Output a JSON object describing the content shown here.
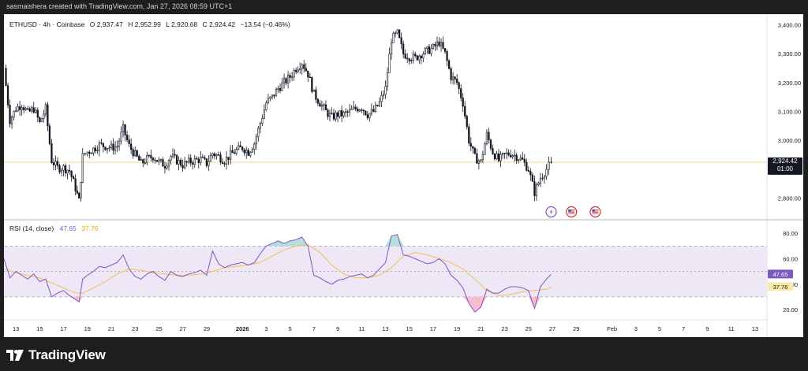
{
  "header": {
    "credit": "sasmaishera created with TradingView.com, Jan 27, 2026 08:59 UTC+1"
  },
  "footer": {
    "brand": "TradingView"
  },
  "colors": {
    "candle": "#131722",
    "price_line": "#f0d896",
    "rsi_line": "#7e57c2",
    "rsi_ma": "#f2c14e",
    "rsi_band": "#ede7f6",
    "overbought_fill": "#b2dfdb",
    "oversold_fill": "#f8bbd0",
    "price_tag_bg": "#131722",
    "rsi_tag_bg": "#7e57c2",
    "ma_tag_bg": "#fbe9a8"
  },
  "chart_data": [
    {
      "type": "candlestick",
      "symbol": "ETHUSD",
      "interval": "4h",
      "exchange": "Coinbase",
      "legend_title": "ETHUSD · 4h · Coinbase",
      "ohlc_text": {
        "o_label": "O",
        "o": "2,937.47",
        "h_label": "H",
        "h": "2,952.99",
        "l_label": "L",
        "l": "2,920.68",
        "c_label": "C",
        "c": "2,924.42",
        "change": "−13.54 (−0.46%)"
      },
      "last_price": 2924.42,
      "last_price_label": "2,924.42",
      "countdown": "01:00",
      "y_ticks": [
        {
          "value": 2800,
          "label": "2,800.00"
        },
        {
          "value": 2900,
          "label": "2,900.00"
        },
        {
          "value": 3000,
          "label": "3,000.00"
        },
        {
          "value": 3100,
          "label": "3,100.00"
        },
        {
          "value": 3200,
          "label": "3,200.00"
        },
        {
          "value": 3300,
          "label": "3,300.00"
        },
        {
          "value": 3400,
          "label": "3,400.00"
        }
      ],
      "ylim": [
        2725,
        3437
      ],
      "price_path_day_close": [
        [
          12.0,
          3250
        ],
        [
          12.5,
          3070
        ],
        [
          13.0,
          3110
        ],
        [
          13.5,
          3125
        ],
        [
          14.0,
          3095
        ],
        [
          14.5,
          3110
        ],
        [
          15.0,
          3060
        ],
        [
          15.5,
          3110
        ],
        [
          16.0,
          2930
        ],
        [
          16.5,
          2905
        ],
        [
          17.0,
          2905
        ],
        [
          17.5,
          2895
        ],
        [
          18.0,
          2835
        ],
        [
          18.3,
          2790
        ],
        [
          18.6,
          2945
        ],
        [
          19.0,
          2960
        ],
        [
          19.5,
          2970
        ],
        [
          20.0,
          2985
        ],
        [
          20.5,
          2980
        ],
        [
          21.0,
          2975
        ],
        [
          21.5,
          2980
        ],
        [
          22.0,
          3040
        ],
        [
          22.5,
          2980
        ],
        [
          23.0,
          2950
        ],
        [
          23.5,
          2920
        ],
        [
          24.0,
          2935
        ],
        [
          24.5,
          2945
        ],
        [
          25.0,
          2925
        ],
        [
          25.5,
          2915
        ],
        [
          26.0,
          2945
        ],
        [
          26.5,
          2930
        ],
        [
          27.0,
          2915
        ],
        [
          27.5,
          2925
        ],
        [
          28.0,
          2930
        ],
        [
          28.5,
          2935
        ],
        [
          29.0,
          2920
        ],
        [
          29.5,
          2955
        ],
        [
          30.0,
          2945
        ],
        [
          30.5,
          2930
        ],
        [
          31.0,
          2950
        ],
        [
          31.5,
          2965
        ],
        [
          32.0,
          2975
        ],
        [
          32.5,
          2960
        ],
        [
          33.0,
          2990
        ],
        [
          33.5,
          3060
        ],
        [
          34.0,
          3130
        ],
        [
          34.5,
          3150
        ],
        [
          35.0,
          3180
        ],
        [
          35.5,
          3200
        ],
        [
          36.0,
          3220
        ],
        [
          36.5,
          3250
        ],
        [
          37.0,
          3270
        ],
        [
          37.5,
          3230
        ],
        [
          38.0,
          3160
        ],
        [
          38.5,
          3130
        ],
        [
          39.0,
          3100
        ],
        [
          39.5,
          3080
        ],
        [
          40.0,
          3090
        ],
        [
          40.5,
          3090
        ],
        [
          41.0,
          3100
        ],
        [
          41.5,
          3110
        ],
        [
          42.0,
          3115
        ],
        [
          42.5,
          3090
        ],
        [
          43.0,
          3100
        ],
        [
          43.5,
          3130
        ],
        [
          44.0,
          3180
        ],
        [
          44.5,
          3350
        ],
        [
          45.0,
          3370
        ],
        [
          45.5,
          3300
        ],
        [
          46.0,
          3290
        ],
        [
          46.5,
          3285
        ],
        [
          47.0,
          3300
        ],
        [
          47.5,
          3310
        ],
        [
          48.0,
          3320
        ],
        [
          48.5,
          3340
        ],
        [
          49.0,
          3300
        ],
        [
          49.5,
          3220
        ],
        [
          50.0,
          3200
        ],
        [
          50.5,
          3130
        ],
        [
          51.0,
          3000
        ],
        [
          51.5,
          2940
        ],
        [
          52.0,
          2925
        ],
        [
          52.5,
          3020
        ],
        [
          53.0,
          2960
        ],
        [
          53.5,
          2930
        ],
        [
          54.0,
          2950
        ],
        [
          54.5,
          2955
        ],
        [
          55.0,
          2945
        ],
        [
          55.5,
          2930
        ],
        [
          56.0,
          2900
        ],
        [
          56.5,
          2820
        ],
        [
          57.0,
          2870
        ],
        [
          57.5,
          2900
        ],
        [
          57.9,
          2924.42
        ]
      ],
      "day_label_unit": "day index on x axis (1 = Dec 1, 2025)"
    },
    {
      "type": "line",
      "indicator": "RSI",
      "legend_title": "RSI (14, close)",
      "rsi_value": 47.65,
      "rsi_label": "47.65",
      "rsi_ma_value": 37.76,
      "rsi_ma_label": "37.76",
      "ylim": [
        12,
        90
      ],
      "y_ticks": [
        {
          "value": 20,
          "label": "20.00"
        },
        {
          "value": 40,
          "label": "40.00"
        },
        {
          "value": 60,
          "label": "60.00"
        },
        {
          "value": 80,
          "label": "80.00"
        }
      ],
      "band": [
        30,
        70
      ],
      "mid": 50,
      "rsi_path": [
        [
          12.0,
          60
        ],
        [
          12.5,
          45
        ],
        [
          13.0,
          50
        ],
        [
          13.5,
          47
        ],
        [
          14.0,
          44
        ],
        [
          14.5,
          48
        ],
        [
          15.0,
          42
        ],
        [
          15.5,
          44
        ],
        [
          16.0,
          30
        ],
        [
          16.5,
          33
        ],
        [
          17.0,
          35
        ],
        [
          17.5,
          31
        ],
        [
          18.0,
          28
        ],
        [
          18.3,
          26
        ],
        [
          18.6,
          44
        ],
        [
          19.0,
          47
        ],
        [
          19.5,
          50
        ],
        [
          20.0,
          54
        ],
        [
          20.5,
          53
        ],
        [
          21.0,
          55
        ],
        [
          21.5,
          57
        ],
        [
          22.0,
          63
        ],
        [
          22.5,
          52
        ],
        [
          23.0,
          46
        ],
        [
          23.5,
          44
        ],
        [
          24.0,
          48
        ],
        [
          24.5,
          50
        ],
        [
          25.0,
          46
        ],
        [
          25.5,
          43
        ],
        [
          26.0,
          50
        ],
        [
          26.5,
          47
        ],
        [
          27.0,
          46
        ],
        [
          27.5,
          48
        ],
        [
          28.0,
          49
        ],
        [
          28.5,
          51
        ],
        [
          29.0,
          47
        ],
        [
          29.5,
          66
        ],
        [
          30.0,
          56
        ],
        [
          30.5,
          53
        ],
        [
          31.0,
          55
        ],
        [
          31.5,
          56
        ],
        [
          32.0,
          57
        ],
        [
          32.5,
          55
        ],
        [
          33.0,
          57
        ],
        [
          33.5,
          64
        ],
        [
          34.0,
          70
        ],
        [
          34.5,
          72
        ],
        [
          35.0,
          74
        ],
        [
          35.5,
          72
        ],
        [
          36.0,
          74
        ],
        [
          36.5,
          75
        ],
        [
          37.0,
          77
        ],
        [
          37.5,
          70
        ],
        [
          38.0,
          47
        ],
        [
          38.5,
          45
        ],
        [
          39.0,
          42
        ],
        [
          39.5,
          40
        ],
        [
          40.0,
          43
        ],
        [
          40.5,
          44
        ],
        [
          41.0,
          46
        ],
        [
          41.5,
          47
        ],
        [
          42.0,
          48
        ],
        [
          42.5,
          45
        ],
        [
          43.0,
          47
        ],
        [
          43.5,
          52
        ],
        [
          44.0,
          57
        ],
        [
          44.5,
          78
        ],
        [
          45.0,
          79
        ],
        [
          45.5,
          63
        ],
        [
          46.0,
          62
        ],
        [
          46.5,
          60
        ],
        [
          47.0,
          58
        ],
        [
          47.5,
          56
        ],
        [
          48.0,
          57
        ],
        [
          48.5,
          60
        ],
        [
          49.0,
          56
        ],
        [
          49.5,
          47
        ],
        [
          50.0,
          43
        ],
        [
          50.5,
          37
        ],
        [
          51.0,
          25
        ],
        [
          51.5,
          18
        ],
        [
          52.0,
          22
        ],
        [
          52.5,
          36
        ],
        [
          53.0,
          33
        ],
        [
          53.5,
          33
        ],
        [
          54.0,
          36
        ],
        [
          54.5,
          38
        ],
        [
          55.0,
          38
        ],
        [
          55.5,
          37
        ],
        [
          56.0,
          35
        ],
        [
          56.5,
          21
        ],
        [
          57.0,
          38
        ],
        [
          57.5,
          44
        ],
        [
          57.9,
          47.65
        ]
      ],
      "rsi_ma_path": [
        [
          12.0,
          52
        ],
        [
          13.0,
          49
        ],
        [
          14.0,
          47
        ],
        [
          15.0,
          45
        ],
        [
          16.0,
          41
        ],
        [
          17.0,
          37
        ],
        [
          18.0,
          33
        ],
        [
          18.6,
          33
        ],
        [
          19.5,
          37
        ],
        [
          20.5,
          42
        ],
        [
          21.5,
          48
        ],
        [
          22.5,
          52
        ],
        [
          23.5,
          51
        ],
        [
          24.5,
          49
        ],
        [
          25.5,
          48
        ],
        [
          26.5,
          47
        ],
        [
          27.5,
          47
        ],
        [
          28.5,
          48
        ],
        [
          29.5,
          50
        ],
        [
          30.5,
          53
        ],
        [
          31.5,
          54
        ],
        [
          32.5,
          55
        ],
        [
          33.5,
          57
        ],
        [
          34.5,
          62
        ],
        [
          35.5,
          67
        ],
        [
          36.5,
          70
        ],
        [
          37.5,
          71
        ],
        [
          38.5,
          65
        ],
        [
          39.5,
          55
        ],
        [
          40.5,
          48
        ],
        [
          41.5,
          45
        ],
        [
          42.5,
          45
        ],
        [
          43.5,
          47
        ],
        [
          44.5,
          53
        ],
        [
          45.5,
          62
        ],
        [
          46.5,
          65
        ],
        [
          47.5,
          63
        ],
        [
          48.5,
          60
        ],
        [
          49.5,
          57
        ],
        [
          50.5,
          52
        ],
        [
          51.5,
          44
        ],
        [
          52.5,
          35
        ],
        [
          53.5,
          31
        ],
        [
          54.5,
          32
        ],
        [
          55.5,
          34
        ],
        [
          56.5,
          35
        ],
        [
          57.5,
          36
        ],
        [
          57.9,
          37.76
        ]
      ]
    }
  ],
  "x_axis": {
    "labels": [
      {
        "day": 13,
        "label": "13"
      },
      {
        "day": 15,
        "label": "15"
      },
      {
        "day": 17,
        "label": "17"
      },
      {
        "day": 19,
        "label": "19"
      },
      {
        "day": 21,
        "label": "21"
      },
      {
        "day": 23,
        "label": "23"
      },
      {
        "day": 25,
        "label": "25"
      },
      {
        "day": 27,
        "label": "27"
      },
      {
        "day": 29,
        "label": "29"
      },
      {
        "day": 32,
        "label": "2026",
        "bold": true
      },
      {
        "day": 34,
        "label": "3"
      },
      {
        "day": 36,
        "label": "5"
      },
      {
        "day": 38,
        "label": "7"
      },
      {
        "day": 40,
        "label": "9"
      },
      {
        "day": 42,
        "label": "11"
      },
      {
        "day": 44,
        "label": "13"
      },
      {
        "day": 46,
        "label": "15"
      },
      {
        "day": 48,
        "label": "17"
      },
      {
        "day": 50,
        "label": "19"
      },
      {
        "day": 52,
        "label": "21"
      },
      {
        "day": 54,
        "label": "23"
      },
      {
        "day": 56,
        "label": "25"
      },
      {
        "day": 58,
        "label": "27"
      },
      {
        "day": 60,
        "label": "29"
      },
      {
        "day": 63,
        "label": "Feb"
      },
      {
        "day": 65,
        "label": "3"
      },
      {
        "day": 67,
        "label": "5"
      },
      {
        "day": 69,
        "label": "7"
      },
      {
        "day": 71,
        "label": "9"
      },
      {
        "day": 73,
        "label": "11"
      },
      {
        "day": 75,
        "label": "13"
      }
    ],
    "range": [
      12,
      76
    ]
  },
  "event_markers": [
    {
      "day": 57.9,
      "icon": "lightning-icon",
      "color": "#7e57c2"
    },
    {
      "day": 59.6,
      "icon": "us-flag-icon",
      "color": "#d32f2f"
    },
    {
      "day": 61.6,
      "icon": "us-flag-icon",
      "color": "#d32f2f"
    }
  ]
}
